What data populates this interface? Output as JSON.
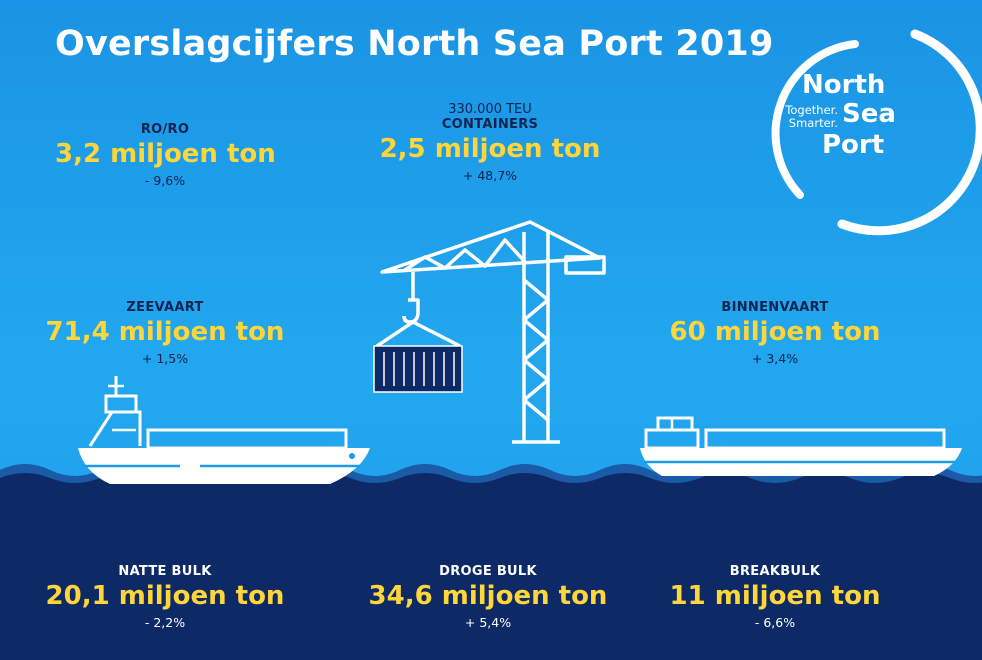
{
  "title": "Overslagcijfers North Sea Port 2019",
  "logo": {
    "word1": "North",
    "word2": "Sea",
    "word3": "Port",
    "tagline1": "Together.",
    "tagline2": "Smarter."
  },
  "stats": {
    "roro": {
      "label": "RO/RO",
      "value": "3,2 miljoen ton",
      "change": "- 9,6%"
    },
    "containers": {
      "over": "330.000 TEU",
      "label": "CONTAINERS",
      "value": "2,5 miljoen ton",
      "change": "+ 48,7%"
    },
    "zeevaart": {
      "label": "ZEEVAART",
      "value": "71,4 miljoen ton",
      "change": "+ 1,5%"
    },
    "binnenvaart": {
      "label": "BINNENVAART",
      "value": "60 miljoen ton",
      "change": "+ 3,4%"
    },
    "natte_bulk": {
      "label": "NATTE BULK",
      "value": "20,1 miljoen ton",
      "change": "- 2,2%"
    },
    "droge_bulk": {
      "label": "DROGE BULK",
      "value": "34,6 miljoen ton",
      "change": "+ 5,4%"
    },
    "breakbulk": {
      "label": "BREAKBULK",
      "value": "11 miljoen ton",
      "change": "- 6,6%"
    }
  },
  "icons": [
    "crane-icon",
    "container-icon",
    "sea-ship-icon",
    "barge-icon",
    "logo-arc-icon"
  ],
  "colors": {
    "sky": "#1e9be8",
    "sea": "#0d2a66",
    "accent": "#ffd53a",
    "text_dark": "#0d2450",
    "white": "#ffffff"
  }
}
